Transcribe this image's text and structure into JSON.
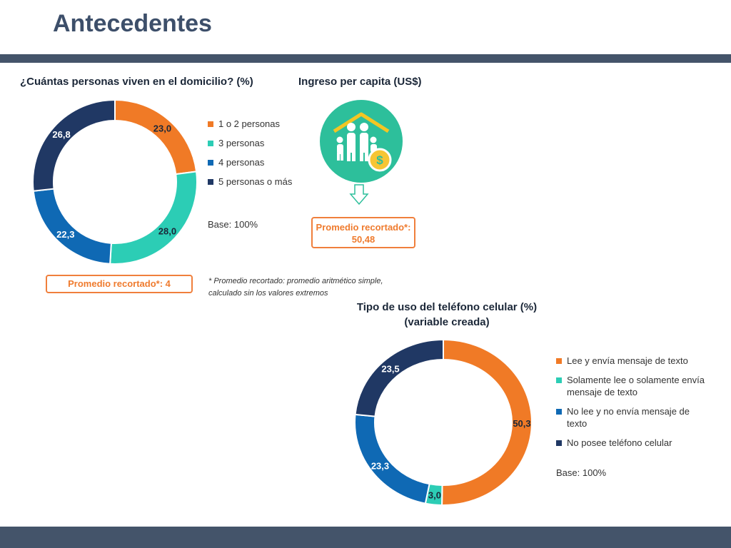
{
  "page": {
    "title": "Antecedentes"
  },
  "colors": {
    "orange": "#f07a26",
    "teal": "#2ccdb5",
    "blue": "#0f69b4",
    "navy": "#203864",
    "accent_box": "#f07f3c",
    "bar": "#44546a"
  },
  "chart_data": [
    {
      "type": "pie",
      "title": "¿Cuántas personas viven en el domicilio? (%)",
      "labels": [
        "1 o 2 personas",
        "3 personas",
        "4 personas",
        "5 personas o más"
      ],
      "values": [
        23.0,
        28.0,
        22.3,
        26.8
      ],
      "value_labels": [
        "23,0",
        "28,0",
        "22,3",
        "26,8"
      ],
      "colors": [
        "#f07a26",
        "#2ccdb5",
        "#0f69b4",
        "#203864"
      ],
      "base": "Base: 100%",
      "average": "Promedio recortado*: 4",
      "legend": "right"
    },
    {
      "type": "pie",
      "title": "Tipo de uso del teléfono celular (%)",
      "subtitle": "(variable creada)",
      "labels": [
        "Lee y envía mensaje de texto",
        "Solamente lee o solamente envía mensaje de texto",
        "No lee y no envía mensaje de texto",
        "No posee teléfono celular"
      ],
      "values": [
        50.3,
        3.0,
        23.3,
        23.5
      ],
      "value_labels": [
        "50,3",
        "3,0",
        "23,3",
        "23,5"
      ],
      "colors": [
        "#f07a26",
        "#2ccdb5",
        "#0f69b4",
        "#203864"
      ],
      "base": "Base: 100%",
      "legend": "right"
    }
  ],
  "income": {
    "title": "Ingreso per capita (US$)",
    "average_label": "Promedio recortado*:",
    "average_value": "50,48",
    "icon": "family-house-money-icon"
  },
  "footnote": {
    "line1": "* Promedio recortado: promedio aritmético simple,",
    "line2": "calculado sin los valores extremos"
  }
}
